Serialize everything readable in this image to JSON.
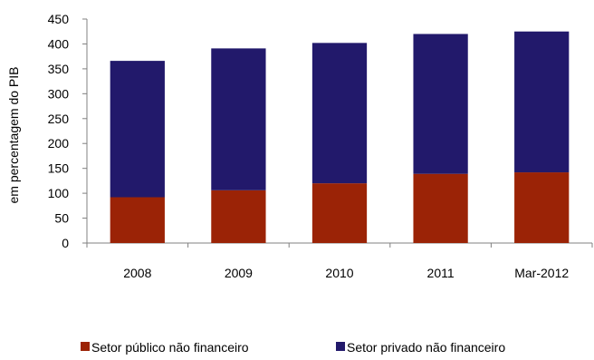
{
  "chart_data": {
    "type": "bar",
    "stacked": true,
    "categories": [
      "2008",
      "2009",
      "2010",
      "2011",
      "Mar-2012"
    ],
    "series": [
      {
        "name": "Setor público não financeiro",
        "values": [
          92,
          106,
          120,
          139,
          142
        ],
        "color": "#9B2306"
      },
      {
        "name": "Setor privado não financeiro",
        "values": [
          274,
          285,
          282,
          281,
          283
        ],
        "color": "#22196B"
      }
    ],
    "title": "",
    "xlabel": "",
    "ylabel": "em percentagem do PIB",
    "ylim": [
      0,
      450
    ],
    "yticks": [
      0,
      50,
      100,
      150,
      200,
      250,
      300,
      350,
      400,
      450
    ],
    "grid": false,
    "legend_position": "bottom"
  }
}
